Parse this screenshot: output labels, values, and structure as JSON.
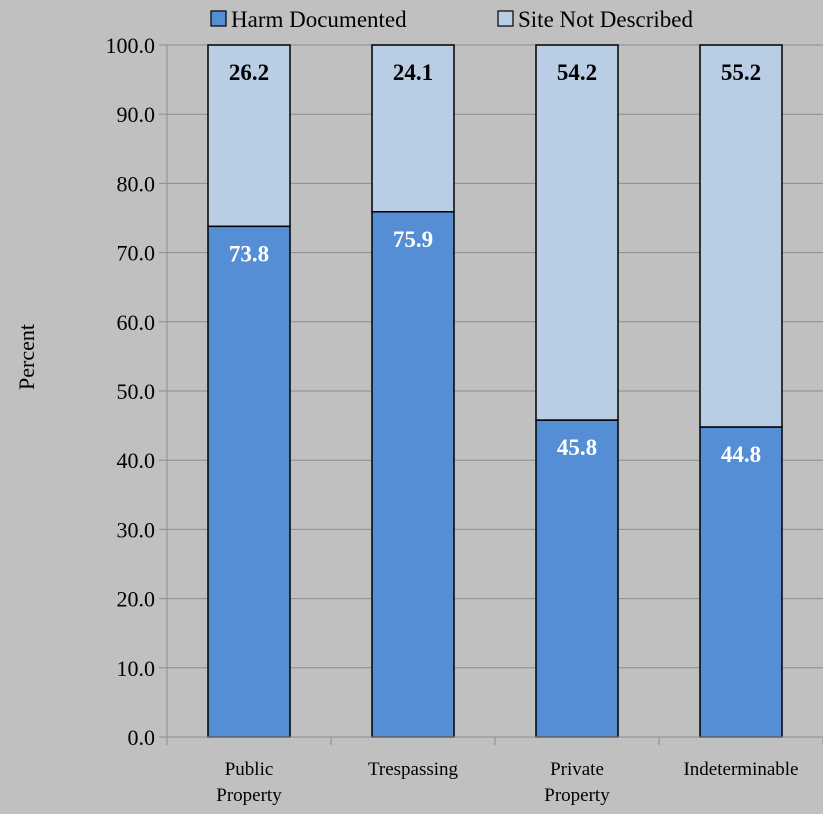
{
  "chart_data": {
    "type": "bar",
    "stacked": true,
    "title": "",
    "xlabel": "",
    "ylabel": "Percent",
    "ylim": [
      0,
      100
    ],
    "y_ticks": [
      "0.0",
      "10.0",
      "20.0",
      "30.0",
      "40.0",
      "50.0",
      "60.0",
      "70.0",
      "80.0",
      "90.0",
      "100.0"
    ],
    "categories": [
      [
        "Public",
        "Property"
      ],
      [
        "Trespassing"
      ],
      [
        "Private",
        "Property"
      ],
      [
        "Indeterminable"
      ]
    ],
    "series": [
      {
        "name": "Harm Documented",
        "values": [
          73.8,
          75.9,
          45.8,
          44.8
        ],
        "color": "#558ed5",
        "label_color": "#ffffff"
      },
      {
        "name": "Site Not Described",
        "values": [
          26.2,
          24.1,
          54.2,
          55.2
        ],
        "color": "#b9cde5",
        "label_color": "#000000"
      }
    ],
    "legend": {
      "position": "top"
    },
    "grid": {
      "horizontal": true,
      "color": "#8c8c8c"
    }
  }
}
